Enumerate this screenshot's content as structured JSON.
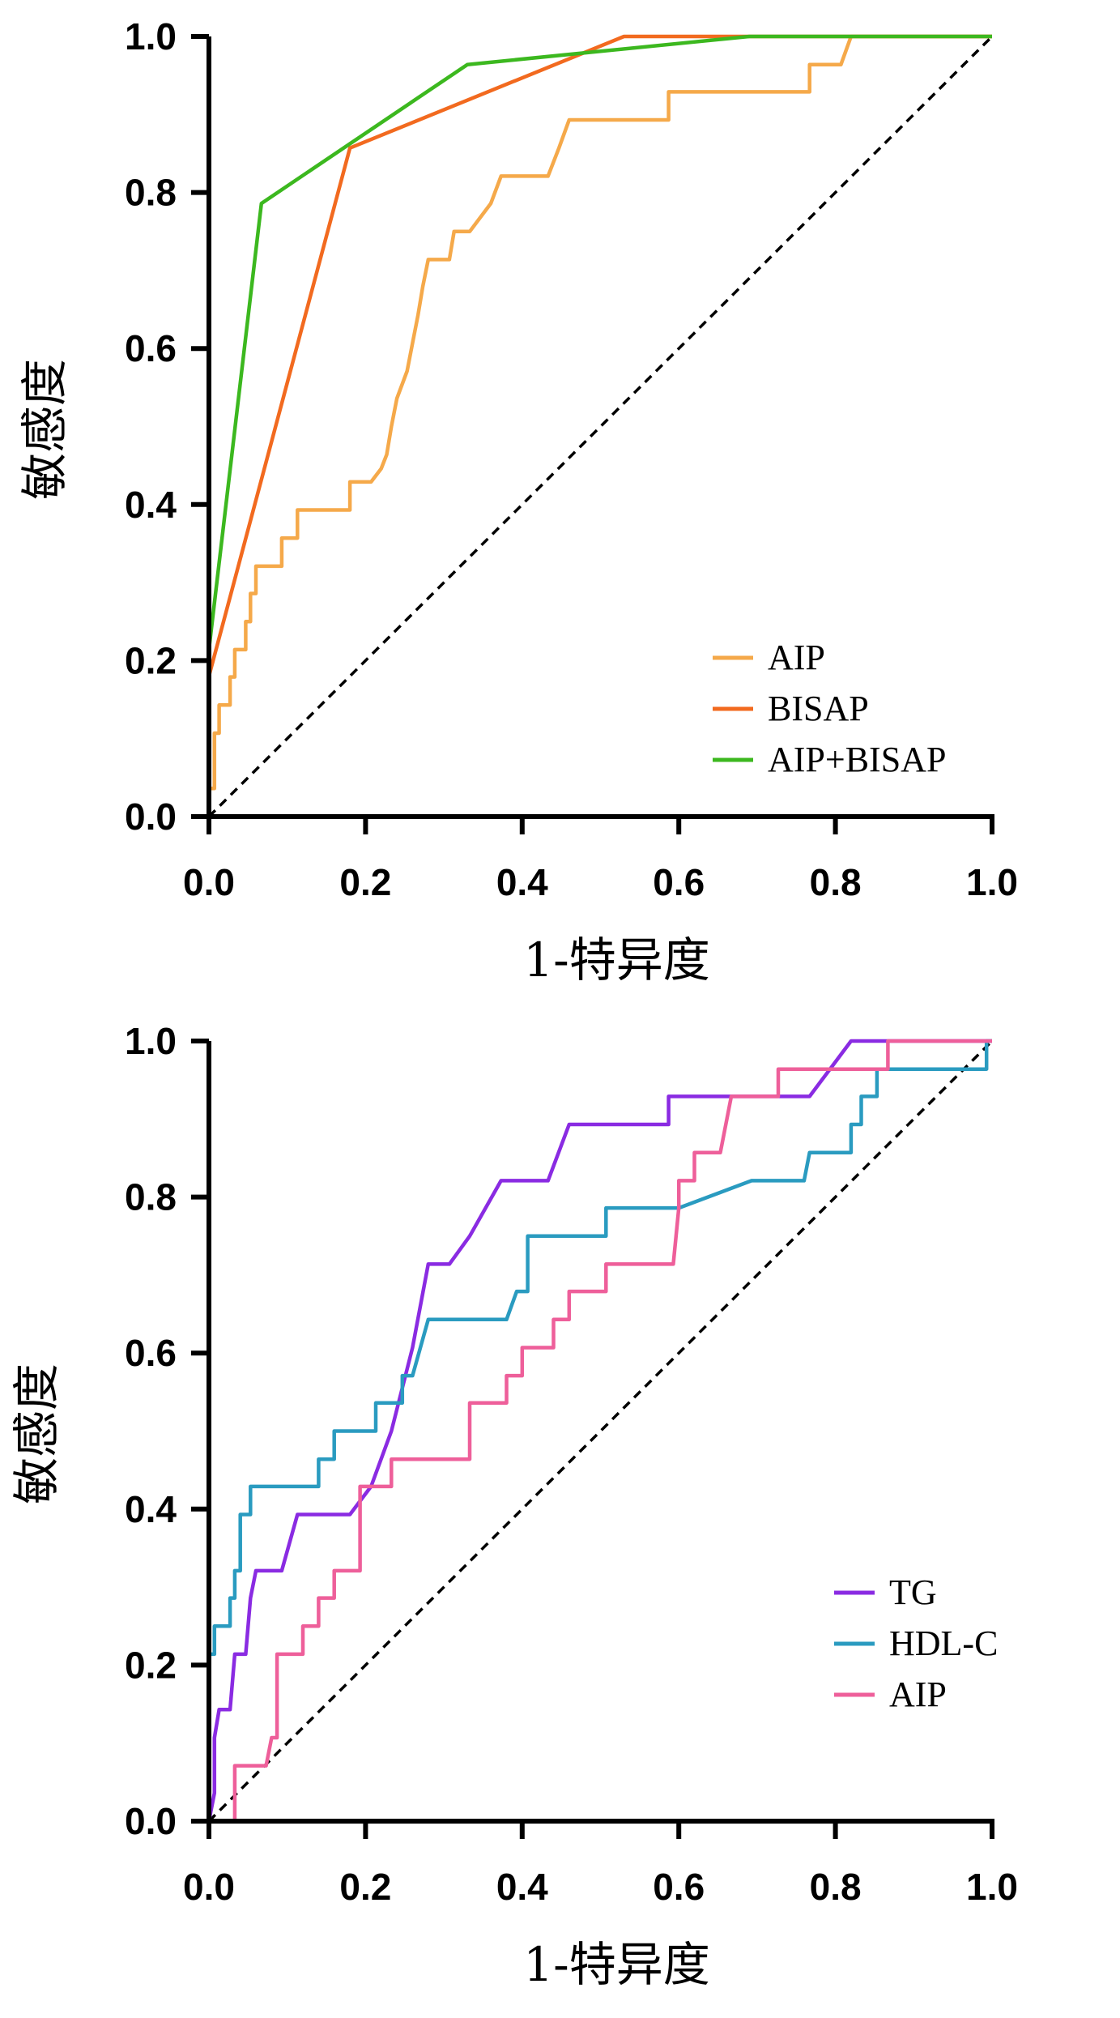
{
  "colors": {
    "AIP_panel1": "#F5A94A",
    "BISAP": "#F26A1F",
    "AIP_BISAP": "#3CB81F",
    "TG": "#8A2BE2",
    "HDL_C": "#2A9BC0",
    "AIP_pink": "#EE5F9A",
    "axis": "#000000",
    "diagonal": "#000000"
  },
  "chart_data": [
    {
      "type": "line",
      "title": "",
      "xlabel": "1-特异度",
      "ylabel": "敏感度",
      "xlim": [
        0,
        1
      ],
      "ylim": [
        0,
        1
      ],
      "xticks": [
        "0.0",
        "0.2",
        "0.4",
        "0.6",
        "0.8",
        "1.0"
      ],
      "yticks": [
        "0.0",
        "0.2",
        "0.4",
        "0.6",
        "0.8",
        "1.0"
      ],
      "legend_position": "bottom-right",
      "reference_line": "diagonal",
      "series": [
        {
          "name": "AIP",
          "color_key": "AIP_panel1",
          "points": [
            [
              0,
              0
            ],
            [
              0,
              0.036
            ],
            [
              0.007,
              0.036
            ],
            [
              0.007,
              0.107
            ],
            [
              0.013,
              0.107
            ],
            [
              0.013,
              0.143
            ],
            [
              0.027,
              0.143
            ],
            [
              0.027,
              0.179
            ],
            [
              0.033,
              0.179
            ],
            [
              0.033,
              0.214
            ],
            [
              0.047,
              0.214
            ],
            [
              0.047,
              0.25
            ],
            [
              0.053,
              0.25
            ],
            [
              0.053,
              0.286
            ],
            [
              0.06,
              0.286
            ],
            [
              0.06,
              0.321
            ],
            [
              0.093,
              0.321
            ],
            [
              0.093,
              0.357
            ],
            [
              0.113,
              0.357
            ],
            [
              0.113,
              0.393
            ],
            [
              0.18,
              0.393
            ],
            [
              0.18,
              0.429
            ],
            [
              0.207,
              0.429
            ],
            [
              0.22,
              0.446
            ],
            [
              0.227,
              0.464
            ],
            [
              0.233,
              0.5
            ],
            [
              0.24,
              0.536
            ],
            [
              0.253,
              0.571
            ],
            [
              0.26,
              0.607
            ],
            [
              0.267,
              0.643
            ],
            [
              0.273,
              0.679
            ],
            [
              0.28,
              0.714
            ],
            [
              0.307,
              0.714
            ],
            [
              0.313,
              0.75
            ],
            [
              0.333,
              0.75
            ],
            [
              0.36,
              0.786
            ],
            [
              0.373,
              0.821
            ],
            [
              0.433,
              0.821
            ],
            [
              0.447,
              0.857
            ],
            [
              0.46,
              0.893
            ],
            [
              0.587,
              0.893
            ],
            [
              0.587,
              0.929
            ],
            [
              0.767,
              0.929
            ],
            [
              0.767,
              0.964
            ],
            [
              0.807,
              0.964
            ],
            [
              0.82,
              1
            ],
            [
              1,
              1
            ]
          ]
        },
        {
          "name": "BISAP",
          "color_key": "BISAP",
          "points": [
            [
              0,
              0
            ],
            [
              0,
              0.18
            ],
            [
              0.18,
              0.857
            ],
            [
              0.53,
              1
            ],
            [
              1,
              1
            ]
          ]
        },
        {
          "name": "AIP+BISAP",
          "color_key": "AIP_BISAP",
          "points": [
            [
              0,
              0
            ],
            [
              0,
              0.214
            ],
            [
              0.067,
              0.786
            ],
            [
              0.33,
              0.964
            ],
            [
              0.69,
              1
            ],
            [
              1,
              1
            ]
          ]
        }
      ]
    },
    {
      "type": "line",
      "title": "",
      "xlabel": "1-特异度",
      "ylabel": "敏感度",
      "xlim": [
        0,
        1
      ],
      "ylim": [
        0,
        1
      ],
      "xticks": [
        "0.0",
        "0.2",
        "0.4",
        "0.6",
        "0.8",
        "1.0"
      ],
      "yticks": [
        "0.0",
        "0.2",
        "0.4",
        "0.6",
        "0.8",
        "1.0"
      ],
      "legend_position": "bottom-right",
      "reference_line": "diagonal",
      "series": [
        {
          "name": "TG",
          "color_key": "TG",
          "points": [
            [
              0,
              0
            ],
            [
              0.007,
              0.036
            ],
            [
              0.007,
              0.107
            ],
            [
              0.013,
              0.143
            ],
            [
              0.027,
              0.143
            ],
            [
              0.033,
              0.214
            ],
            [
              0.047,
              0.214
            ],
            [
              0.053,
              0.286
            ],
            [
              0.06,
              0.321
            ],
            [
              0.093,
              0.321
            ],
            [
              0.113,
              0.393
            ],
            [
              0.18,
              0.393
            ],
            [
              0.207,
              0.429
            ],
            [
              0.233,
              0.5
            ],
            [
              0.26,
              0.607
            ],
            [
              0.28,
              0.714
            ],
            [
              0.307,
              0.714
            ],
            [
              0.333,
              0.75
            ],
            [
              0.373,
              0.821
            ],
            [
              0.433,
              0.821
            ],
            [
              0.46,
              0.893
            ],
            [
              0.587,
              0.893
            ],
            [
              0.587,
              0.929
            ],
            [
              0.767,
              0.929
            ],
            [
              0.82,
              1
            ],
            [
              1,
              1
            ]
          ]
        },
        {
          "name": "HDL-C",
          "color_key": "HDL_C",
          "points": [
            [
              0,
              0
            ],
            [
              0,
              0.214
            ],
            [
              0.007,
              0.214
            ],
            [
              0.007,
              0.25
            ],
            [
              0.027,
              0.25
            ],
            [
              0.027,
              0.286
            ],
            [
              0.033,
              0.286
            ],
            [
              0.033,
              0.321
            ],
            [
              0.04,
              0.321
            ],
            [
              0.04,
              0.393
            ],
            [
              0.053,
              0.393
            ],
            [
              0.053,
              0.429
            ],
            [
              0.14,
              0.429
            ],
            [
              0.14,
              0.464
            ],
            [
              0.16,
              0.464
            ],
            [
              0.16,
              0.5
            ],
            [
              0.213,
              0.5
            ],
            [
              0.213,
              0.536
            ],
            [
              0.247,
              0.536
            ],
            [
              0.247,
              0.571
            ],
            [
              0.26,
              0.571
            ],
            [
              0.28,
              0.643
            ],
            [
              0.38,
              0.643
            ],
            [
              0.393,
              0.679
            ],
            [
              0.407,
              0.679
            ],
            [
              0.407,
              0.75
            ],
            [
              0.507,
              0.75
            ],
            [
              0.507,
              0.786
            ],
            [
              0.6,
              0.786
            ],
            [
              0.693,
              0.821
            ],
            [
              0.76,
              0.821
            ],
            [
              0.767,
              0.857
            ],
            [
              0.82,
              0.857
            ],
            [
              0.82,
              0.893
            ],
            [
              0.833,
              0.893
            ],
            [
              0.833,
              0.929
            ],
            [
              0.853,
              0.929
            ],
            [
              0.853,
              0.964
            ],
            [
              0.993,
              0.964
            ],
            [
              0.993,
              1
            ],
            [
              1,
              1
            ]
          ]
        },
        {
          "name": "AIP",
          "color_key": "AIP_pink",
          "points": [
            [
              0,
              0
            ],
            [
              0.033,
              0
            ],
            [
              0.033,
              0.071
            ],
            [
              0.073,
              0.071
            ],
            [
              0.08,
              0.107
            ],
            [
              0.087,
              0.107
            ],
            [
              0.087,
              0.214
            ],
            [
              0.12,
              0.214
            ],
            [
              0.12,
              0.25
            ],
            [
              0.14,
              0.25
            ],
            [
              0.14,
              0.286
            ],
            [
              0.16,
              0.286
            ],
            [
              0.16,
              0.321
            ],
            [
              0.193,
              0.321
            ],
            [
              0.193,
              0.429
            ],
            [
              0.233,
              0.429
            ],
            [
              0.233,
              0.464
            ],
            [
              0.333,
              0.464
            ],
            [
              0.333,
              0.536
            ],
            [
              0.38,
              0.536
            ],
            [
              0.38,
              0.571
            ],
            [
              0.4,
              0.571
            ],
            [
              0.4,
              0.607
            ],
            [
              0.44,
              0.607
            ],
            [
              0.44,
              0.643
            ],
            [
              0.46,
              0.643
            ],
            [
              0.46,
              0.679
            ],
            [
              0.507,
              0.679
            ],
            [
              0.507,
              0.714
            ],
            [
              0.593,
              0.714
            ],
            [
              0.6,
              0.786
            ],
            [
              0.6,
              0.821
            ],
            [
              0.62,
              0.821
            ],
            [
              0.62,
              0.857
            ],
            [
              0.653,
              0.857
            ],
            [
              0.667,
              0.929
            ],
            [
              0.727,
              0.929
            ],
            [
              0.727,
              0.964
            ],
            [
              0.867,
              0.964
            ],
            [
              0.867,
              1
            ],
            [
              1,
              1
            ]
          ]
        }
      ]
    }
  ]
}
